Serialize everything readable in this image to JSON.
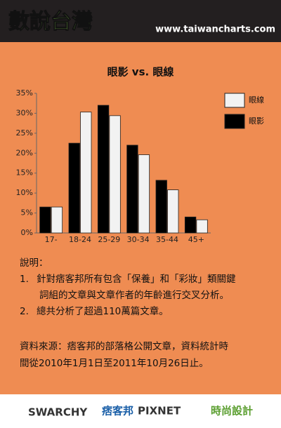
{
  "header": {
    "logo": "數說台灣",
    "url": "www.taiwancharts.com"
  },
  "chart_data": {
    "type": "bar",
    "title": "眼影 vs. 眼線",
    "categories": [
      "17-",
      "18-24",
      "25-29",
      "30-34",
      "35-44",
      "45+"
    ],
    "series": [
      {
        "name": "眼線",
        "color": "#f2f2f2",
        "values": [
          6.5,
          30.3,
          29.4,
          19.6,
          10.8,
          3.3
        ]
      },
      {
        "name": "眼影",
        "color": "#000000",
        "values": [
          6.5,
          22.5,
          32,
          22,
          13.2,
          4
        ]
      }
    ],
    "ylim": [
      0,
      35
    ],
    "yticks": [
      {
        "value": 0,
        "label": "0%"
      },
      {
        "value": 5,
        "label": "5%"
      },
      {
        "value": 10,
        "label": "10%"
      },
      {
        "value": 15,
        "label": "15%"
      },
      {
        "value": 20,
        "label": "20%"
      },
      {
        "value": 25,
        "label": "25%"
      },
      {
        "value": 30,
        "label": "30%"
      },
      {
        "value": 35,
        "label": "35%"
      }
    ],
    "grid": false,
    "legend": "right"
  },
  "notes": {
    "heading": "說明：",
    "items": [
      {
        "number": "1.",
        "lines": [
          "針對痞客邦所有包含「保養」和「彩妝」類關鍵",
          "詞組的文章與文章作者的年齡進行交叉分析。"
        ]
      },
      {
        "number": "2.",
        "lines": [
          "總共分析了超過110萬篇文章。"
        ]
      }
    ]
  },
  "source": {
    "lines": [
      "資料來源：痞客邦的部落格公開文章，資料統計時",
      "間從2010年1月1日至2011年10月26日止。"
    ]
  },
  "footer": {
    "logos": [
      "SWARCHY",
      "痞客邦",
      "PIXNET",
      "時尚設計"
    ]
  }
}
